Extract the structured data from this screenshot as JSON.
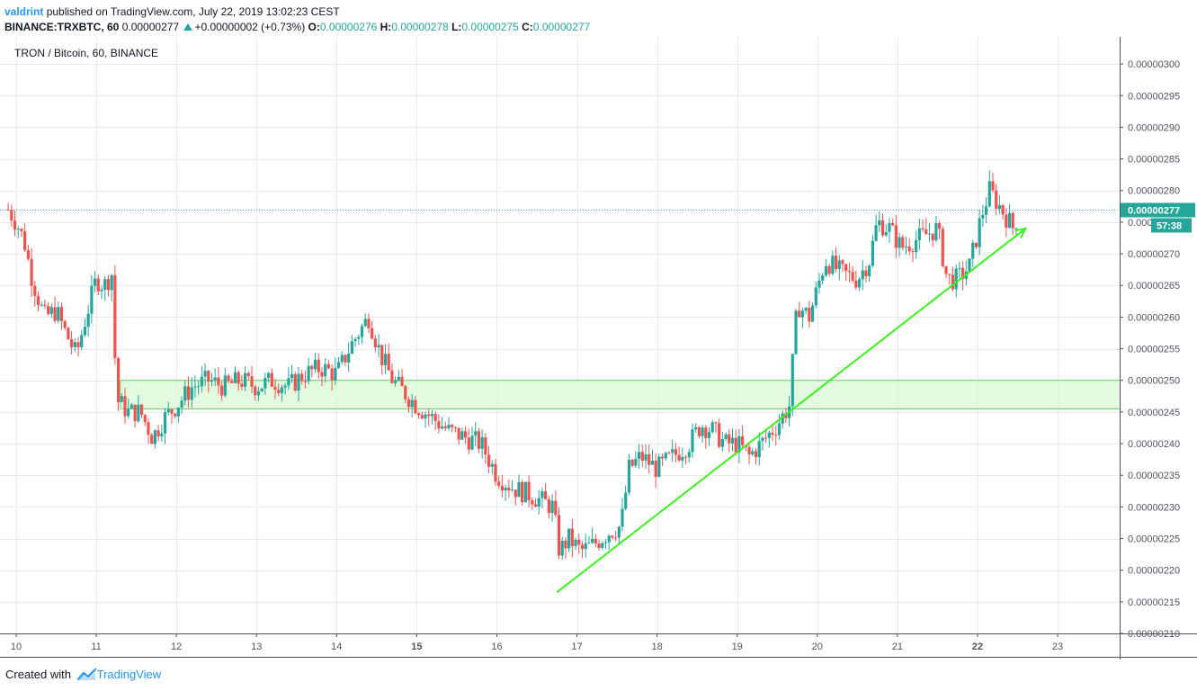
{
  "header": {
    "author": "valdrint",
    "published": "published on TradingView.com, July 22, 2019 13:02:23 CEST",
    "symbol": "BINANCE:TRXBTC, 60",
    "last": "0.00000277",
    "change": "+0.00000002 (+0.73%)",
    "o_label": "O:",
    "o_value": "0.00000276",
    "h_label": "H:",
    "h_value": "0.00000278",
    "l_label": "L:",
    "l_value": "0.00000275",
    "c_label": "C:",
    "c_value": "0.00000277"
  },
  "footer": {
    "created": "Created with",
    "brand": "TradingView"
  },
  "colors": {
    "up": "#26a69a",
    "down": "#ef5350",
    "trend": "#3cf01e",
    "zone_fill": "#d9f7d5",
    "zone_line": "#5fd35f",
    "accent": "#2196f3"
  },
  "chart_data": {
    "type": "candlestick",
    "title": "TRON / Bitcoin, 60, BINANCE",
    "ylim": [
      2.1e-06,
      3.03e-06
    ],
    "y_ticks": [
      "0.00000210",
      "0.00000215",
      "0.00000220",
      "0.00000225",
      "0.00000230",
      "0.00000235",
      "0.00000240",
      "0.00000245",
      "0.00000250",
      "0.00000255",
      "0.00000260",
      "0.00000265",
      "0.00000270",
      "0.00000275",
      "0.00000280",
      "0.00000285",
      "0.00000290",
      "0.00000295",
      "0.00000300"
    ],
    "x_ticks": [
      {
        "label": "10",
        "day": 10,
        "bold": false
      },
      {
        "label": "11",
        "day": 11,
        "bold": false
      },
      {
        "label": "12",
        "day": 12,
        "bold": false
      },
      {
        "label": "13",
        "day": 13,
        "bold": false
      },
      {
        "label": "14",
        "day": 14,
        "bold": false
      },
      {
        "label": "15",
        "day": 15,
        "bold": true
      },
      {
        "label": "16",
        "day": 16,
        "bold": false
      },
      {
        "label": "17",
        "day": 17,
        "bold": false
      },
      {
        "label": "18",
        "day": 18,
        "bold": false
      },
      {
        "label": "19",
        "day": 19,
        "bold": false
      },
      {
        "label": "20",
        "day": 20,
        "bold": false
      },
      {
        "label": "21",
        "day": 21,
        "bold": false
      },
      {
        "label": "22",
        "day": 22,
        "bold": true
      },
      {
        "label": "23",
        "day": 23,
        "bold": false
      }
    ],
    "last_price": 2.77e-06,
    "last_price_label": "0.00000277",
    "countdown": "57:38",
    "support_zone": [
      2.455e-06,
      2.5e-06
    ],
    "trendline": {
      "from": [
        16.75,
        2.165e-06
      ],
      "to": [
        22.6,
        2.74e-06
      ]
    },
    "close_path": [
      [
        9.9,
        2.77e-06
      ],
      [
        10.0,
        2.75e-06
      ],
      [
        10.1,
        2.72e-06
      ],
      [
        10.2,
        2.66e-06
      ],
      [
        10.35,
        2.6e-06
      ],
      [
        10.5,
        2.61e-06
      ],
      [
        10.6,
        2.58e-06
      ],
      [
        10.75,
        2.54e-06
      ],
      [
        10.85,
        2.59e-06
      ],
      [
        11.0,
        2.66e-06
      ],
      [
        11.1,
        2.65e-06
      ],
      [
        11.2,
        2.67e-06
      ],
      [
        11.25,
        2.47e-06
      ],
      [
        11.4,
        2.45e-06
      ],
      [
        11.55,
        2.45e-06
      ],
      [
        11.7,
        2.41e-06
      ],
      [
        11.85,
        2.44e-06
      ],
      [
        12.0,
        2.46e-06
      ],
      [
        12.2,
        2.49e-06
      ],
      [
        12.4,
        2.5e-06
      ],
      [
        12.6,
        2.49e-06
      ],
      [
        12.8,
        2.5e-06
      ],
      [
        13.0,
        2.49e-06
      ],
      [
        13.2,
        2.5e-06
      ],
      [
        13.4,
        2.49e-06
      ],
      [
        13.6,
        2.51e-06
      ],
      [
        13.8,
        2.52e-06
      ],
      [
        14.0,
        2.51e-06
      ],
      [
        14.2,
        2.56e-06
      ],
      [
        14.4,
        2.6e-06
      ],
      [
        14.55,
        2.54e-06
      ],
      [
        14.7,
        2.5e-06
      ],
      [
        14.85,
        2.48e-06
      ],
      [
        15.0,
        2.46e-06
      ],
      [
        15.2,
        2.44e-06
      ],
      [
        15.4,
        2.42e-06
      ],
      [
        15.6,
        2.41e-06
      ],
      [
        15.8,
        2.4e-06
      ],
      [
        16.0,
        2.35e-06
      ],
      [
        16.2,
        2.33e-06
      ],
      [
        16.4,
        2.32e-06
      ],
      [
        16.55,
        2.31e-06
      ],
      [
        16.7,
        2.3e-06
      ],
      [
        16.78,
        2.23e-06
      ],
      [
        16.9,
        2.25e-06
      ],
      [
        17.05,
        2.23e-06
      ],
      [
        17.2,
        2.24e-06
      ],
      [
        17.4,
        2.26e-06
      ],
      [
        17.55,
        2.27e-06
      ],
      [
        17.65,
        2.36e-06
      ],
      [
        17.8,
        2.38e-06
      ],
      [
        18.0,
        2.36e-06
      ],
      [
        18.2,
        2.38e-06
      ],
      [
        18.4,
        2.4e-06
      ],
      [
        18.55,
        2.43e-06
      ],
      [
        18.7,
        2.42e-06
      ],
      [
        18.85,
        2.4e-06
      ],
      [
        19.0,
        2.4e-06
      ],
      [
        19.15,
        2.38e-06
      ],
      [
        19.3,
        2.4e-06
      ],
      [
        19.5,
        2.43e-06
      ],
      [
        19.65,
        2.46e-06
      ],
      [
        19.75,
        2.62e-06
      ],
      [
        19.9,
        2.6e-06
      ],
      [
        20.1,
        2.69e-06
      ],
      [
        20.3,
        2.67e-06
      ],
      [
        20.5,
        2.66e-06
      ],
      [
        20.65,
        2.69e-06
      ],
      [
        20.75,
        2.75e-06
      ],
      [
        20.9,
        2.74e-06
      ],
      [
        21.05,
        2.71e-06
      ],
      [
        21.2,
        2.72e-06
      ],
      [
        21.35,
        2.73e-06
      ],
      [
        21.5,
        2.74e-06
      ],
      [
        21.62,
        2.66e-06
      ],
      [
        21.75,
        2.66e-06
      ],
      [
        21.9,
        2.68e-06
      ],
      [
        22.05,
        2.76e-06
      ],
      [
        22.15,
        2.8e-06
      ],
      [
        22.3,
        2.77e-06
      ],
      [
        22.45,
        2.74e-06
      ],
      [
        22.52,
        2.77e-06
      ]
    ]
  }
}
